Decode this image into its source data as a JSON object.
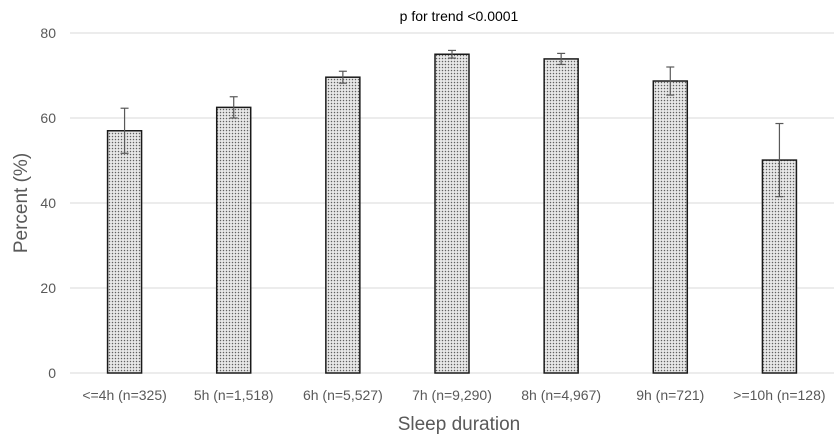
{
  "chart_data": {
    "type": "bar",
    "title": "p for trend <0.0001",
    "xlabel": "Sleep duration",
    "ylabel": "Percent (%)",
    "ylim": [
      0,
      80
    ],
    "yticks": [
      0,
      20,
      40,
      60,
      80
    ],
    "grid": true,
    "legend": "none",
    "categories": [
      "<=4h (n=325)",
      "5h (n=1,518)",
      "6h (n=5,527)",
      "7h (n=9,290)",
      "8h (n=4,967)",
      "9h (n=721)",
      ">=10h (n=128)"
    ],
    "values": [
      57.0,
      62.5,
      69.6,
      75.0,
      73.9,
      68.7,
      50.1
    ],
    "error_upper": [
      62.3,
      65.0,
      71.0,
      75.9,
      75.2,
      72.0,
      58.7
    ],
    "error_lower": [
      51.7,
      60.0,
      68.2,
      74.1,
      72.6,
      65.4,
      41.5
    ],
    "colors": {
      "bar_fill": "#d0d0d0",
      "bar_stroke": "#1a1a1a",
      "grid": "#d9d9d9",
      "error_bar": "#595959"
    }
  }
}
